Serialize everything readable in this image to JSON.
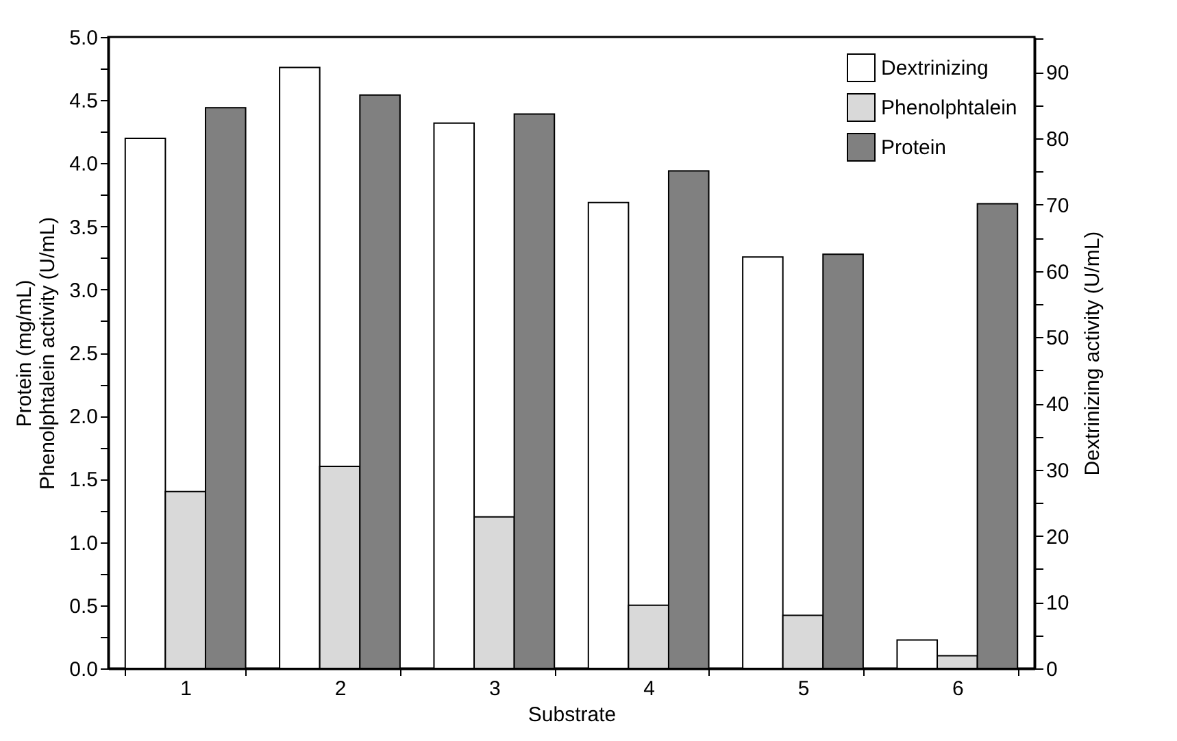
{
  "chart_data": {
    "type": "bar",
    "xlabel": "Substrate",
    "ylabel": "Protein (mg/mL)\nPhenolphtalein activity (U/mL)",
    "y2label": "Dextrinizing activity (U/mL)",
    "categories": [
      "1",
      "2",
      "3",
      "4",
      "5",
      "6"
    ],
    "series": [
      {
        "name": "Dextrinizing",
        "color": "#ffffff",
        "axis": "y2",
        "values": [
          80.0,
          90.7,
          82.3,
          70.3,
          62.1,
          4.3
        ]
      },
      {
        "name": "Phenolphtalein",
        "color": "#d9d9d9",
        "values": [
          1.4,
          1.6,
          1.2,
          0.5,
          0.42,
          0.1
        ]
      },
      {
        "name": "Protein",
        "color": "#808080",
        "values": [
          4.44,
          4.54,
          4.39,
          3.94,
          3.28,
          3.68
        ]
      }
    ],
    "ylim": [
      0,
      5
    ],
    "yticks": [
      {
        "value": 0,
        "label": "0.0"
      },
      {
        "value": 0.25,
        "label": null
      },
      {
        "value": 0.5,
        "label": "0.5"
      },
      {
        "value": 0.75,
        "label": null
      },
      {
        "value": 1,
        "label": "1.0"
      },
      {
        "value": 1.25,
        "label": null
      },
      {
        "value": 1.5,
        "label": "1.5"
      },
      {
        "value": 1.75,
        "label": null
      },
      {
        "value": 2,
        "label": "2.0"
      },
      {
        "value": 2.25,
        "label": null
      },
      {
        "value": 2.5,
        "label": "2.5"
      },
      {
        "value": 2.75,
        "label": null
      },
      {
        "value": 3,
        "label": "3.0"
      },
      {
        "value": 3.25,
        "label": null
      },
      {
        "value": 3.5,
        "label": "3.5"
      },
      {
        "value": 3.75,
        "label": null
      },
      {
        "value": 4,
        "label": "4.0"
      },
      {
        "value": 4.25,
        "label": null
      },
      {
        "value": 4.5,
        "label": "4.5"
      },
      {
        "value": 4.75,
        "label": null
      },
      {
        "value": 5,
        "label": "5.0"
      }
    ],
    "y2lim": [
      0,
      95.3
    ],
    "y2ticks": [
      0,
      {
        "value": 5,
        "label": null
      },
      10,
      {
        "value": 15,
        "label": null
      },
      20,
      {
        "value": 25,
        "label": null
      },
      30,
      {
        "value": 35,
        "label": null
      },
      40,
      {
        "value": 45,
        "label": null
      },
      50,
      {
        "value": 55,
        "label": null
      },
      60,
      {
        "value": 65,
        "label": null
      },
      70,
      {
        "value": 75,
        "label": null
      },
      80,
      {
        "value": 85,
        "label": null
      },
      90,
      {
        "value": 95,
        "label": null
      }
    ],
    "legend": "top right"
  }
}
